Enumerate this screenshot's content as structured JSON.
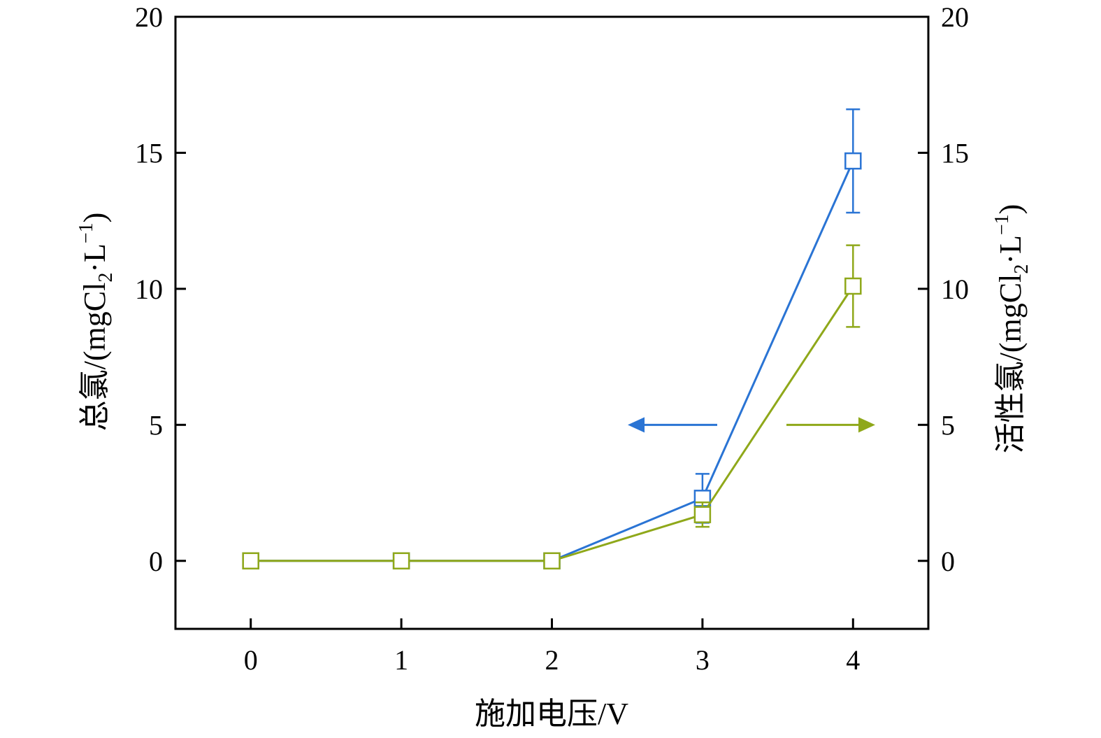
{
  "chart_data": {
    "type": "line",
    "xlabel": "施加电压/V",
    "ylabel_left": {
      "prefix": "总氯/(mgCl",
      "sub": "2",
      "mid": "·L",
      "sup": "−1",
      "suffix": ")"
    },
    "ylabel_right": {
      "prefix": "活性氯/(mgCl",
      "sub": "2",
      "mid": "·L",
      "sup": "−1",
      "suffix": ")"
    },
    "x": [
      0,
      1,
      2,
      3,
      4
    ],
    "xticks": [
      "0",
      "1",
      "2",
      "3",
      "4"
    ],
    "xlim": [
      -0.5,
      4.5
    ],
    "ylim_left": [
      -2.5,
      20
    ],
    "ylim_right": [
      -2.5,
      20
    ],
    "yticks": [
      "0",
      "5",
      "10",
      "15",
      "20"
    ],
    "grid": false,
    "series": [
      {
        "axis": "left",
        "color": "#2a74d4",
        "marker": "open-square",
        "values": [
          0,
          0,
          0,
          2.3,
          14.7
        ],
        "errors": [
          0,
          0,
          0,
          0.9,
          1.9
        ]
      },
      {
        "axis": "right",
        "color": "#8fa81a",
        "marker": "open-square",
        "values": [
          0,
          0,
          0,
          1.7,
          10.1
        ],
        "errors": [
          0,
          0,
          0,
          0.45,
          1.5
        ]
      }
    ],
    "annotations": [
      {
        "type": "arrow",
        "direction": "left",
        "series_axis": "left",
        "color": "#2a74d4"
      },
      {
        "type": "arrow",
        "direction": "right",
        "series_axis": "right",
        "color": "#8fa81a"
      }
    ]
  }
}
